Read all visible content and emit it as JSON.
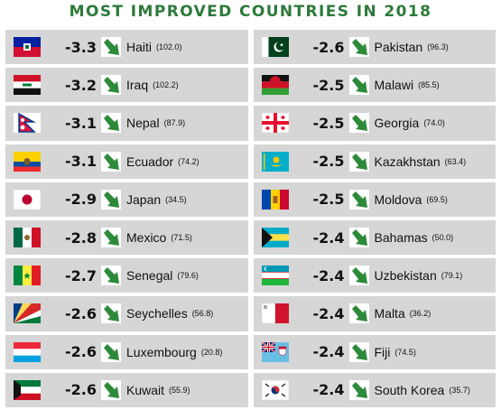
{
  "title": "MOST IMPROVED COUNTRIES IN 2018",
  "arrow_icon": "down-right-arrow-icon",
  "arrow_color": "#2d8a3a",
  "countries": [
    {
      "name": "Haiti",
      "change": "-3.3",
      "score": "(102.0)",
      "flag": "haiti"
    },
    {
      "name": "Iraq",
      "change": "-3.2",
      "score": "(102.2)",
      "flag": "iraq"
    },
    {
      "name": "Nepal",
      "change": "-3.1",
      "score": "(87.9)",
      "flag": "nepal"
    },
    {
      "name": "Ecuador",
      "change": "-3.1",
      "score": "(74.2)",
      "flag": "ecuador"
    },
    {
      "name": "Japan",
      "change": "-2.9",
      "score": "(34.5)",
      "flag": "japan"
    },
    {
      "name": "Mexico",
      "change": "-2.8",
      "score": "(71.5)",
      "flag": "mexico"
    },
    {
      "name": "Senegal",
      "change": "-2.7",
      "score": "(79.6)",
      "flag": "senegal"
    },
    {
      "name": "Seychelles",
      "change": "-2.6",
      "score": "(56.8)",
      "flag": "seychelles"
    },
    {
      "name": "Luxembourg",
      "change": "-2.6",
      "score": "(20.8)",
      "flag": "luxembourg"
    },
    {
      "name": "Kuwait",
      "change": "-2.6",
      "score": "(55.9)",
      "flag": "kuwait"
    },
    {
      "name": "Pakistan",
      "change": "-2.6",
      "score": "(96.3)",
      "flag": "pakistan"
    },
    {
      "name": "Malawi",
      "change": "-2.5",
      "score": "(85.5)",
      "flag": "malawi"
    },
    {
      "name": "Georgia",
      "change": "-2.5",
      "score": "(74.0)",
      "flag": "georgia"
    },
    {
      "name": "Kazakhstan",
      "change": "-2.5",
      "score": "(63.4)",
      "flag": "kazakhstan"
    },
    {
      "name": "Moldova",
      "change": "-2.5",
      "score": "(69.5)",
      "flag": "moldova"
    },
    {
      "name": "Bahamas",
      "change": "-2.4",
      "score": "(50.0)",
      "flag": "bahamas"
    },
    {
      "name": "Uzbekistan",
      "change": "-2.4",
      "score": "(79.1)",
      "flag": "uzbekistan"
    },
    {
      "name": "Malta",
      "change": "-2.4",
      "score": "(36.2)",
      "flag": "malta"
    },
    {
      "name": "Fiji",
      "change": "-2.4",
      "score": "(74.5)",
      "flag": "fiji"
    },
    {
      "name": "South Korea",
      "change": "-2.4",
      "score": "(35.7)",
      "flag": "south-korea"
    }
  ]
}
